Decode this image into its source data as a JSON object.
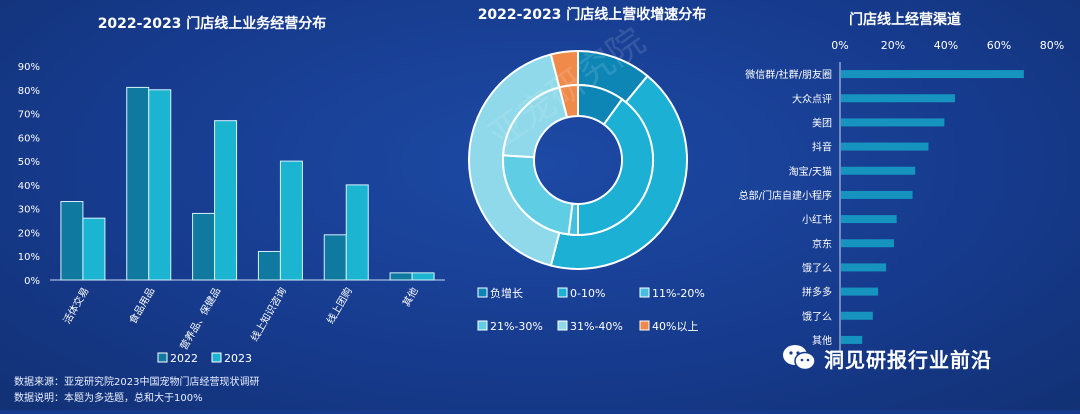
{
  "charts": {
    "left": {
      "title": "2022-2023 门店线上业务经营分布"
    },
    "middle": {
      "title": "2022-2023 门店线上营收增速分布"
    },
    "right": {
      "title": "门店线上经营渠道"
    }
  },
  "colors": {
    "bar2022": "#0f79a0",
    "bar2023": "#1bb5d1",
    "donut": [
      "#0e86b5",
      "#1cb0d4",
      "#45c0e0",
      "#5fcde4",
      "#8fd9ea",
      "#f08a4b"
    ],
    "hbar": "#1694bf"
  },
  "chart_data": [
    {
      "type": "bar",
      "title": "2022-2023 门店线上业务经营分布",
      "categories": [
        "活体交易",
        "食品用品",
        "营养品、保健品",
        "线上知识咨询",
        "线上团购",
        "其他"
      ],
      "series": [
        {
          "name": "2022",
          "values": [
            33,
            81,
            28,
            12,
            19,
            3
          ]
        },
        {
          "name": "2023",
          "values": [
            26,
            80,
            67,
            50,
            40,
            3
          ]
        }
      ],
      "yticks": [
        "0%",
        "10%",
        "20%",
        "30%",
        "40%",
        "50%",
        "60%",
        "70%",
        "80%",
        "90%"
      ],
      "ylim": [
        0,
        90
      ],
      "legend": "bottom"
    },
    {
      "type": "pie",
      "title": "2022-2023 门店线上营收增速分布",
      "categories": [
        "负增长",
        "0-10%",
        "11%-20%",
        "21%-30%",
        "31%-40%",
        "40%以上"
      ],
      "series": [
        {
          "name": "outer",
          "values": [
            11,
            43,
            0,
            0,
            42,
            4
          ]
        },
        {
          "name": "inner",
          "values": [
            10,
            40,
            2,
            24,
            20,
            4
          ]
        }
      ],
      "legend": "bottom"
    },
    {
      "type": "bar",
      "orientation": "horizontal",
      "title": "门店线上经营渠道",
      "categories": [
        "微信群/社群/朋友圈",
        "大众点评",
        "美团",
        "抖音",
        "淘宝/天猫",
        "总部/门店自建小程序",
        "小红书",
        "京东",
        "饿了么",
        "拼多多",
        "饿了么",
        "其他"
      ],
      "values": [
        69,
        43,
        39,
        33,
        28,
        27,
        21,
        20,
        17,
        14,
        12,
        8
      ],
      "xticks": [
        "0%",
        "20%",
        "40%",
        "60%",
        "80%"
      ],
      "xlim": [
        0,
        80
      ]
    }
  ],
  "footnote": {
    "line1": "数据来源：亚宠研究院2023中国宠物门店经营现状调研",
    "line2": "数据说明：本题为多选题，总和大于100%"
  },
  "watermark": "亚宠研究院",
  "brand": {
    "text": "洞见研报行业前沿",
    "icon": "wechat-icon"
  }
}
